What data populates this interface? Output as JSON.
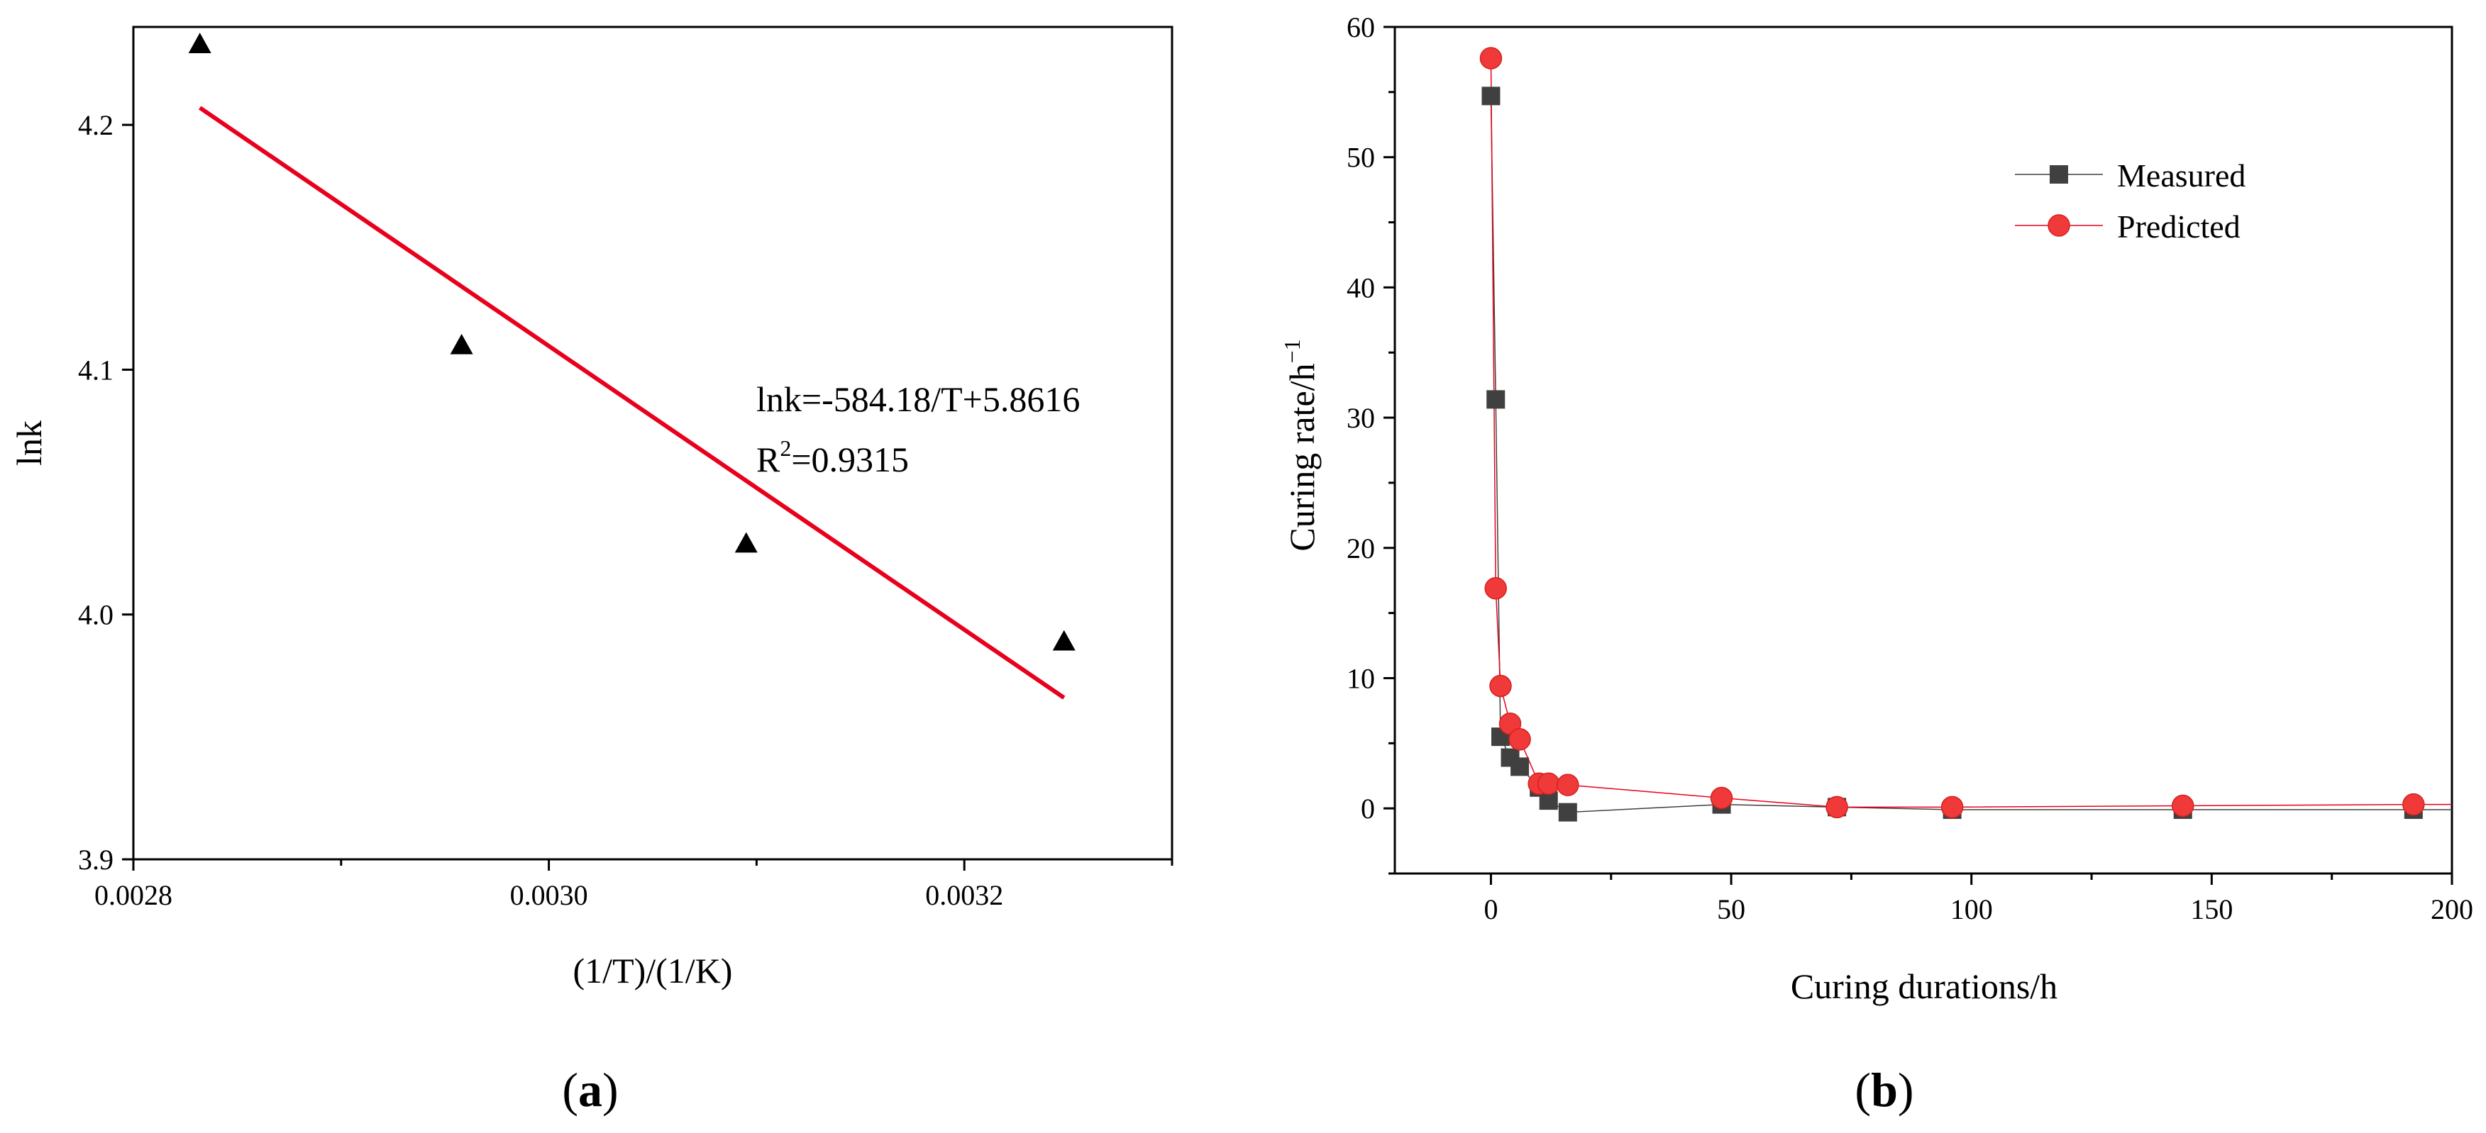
{
  "colors": {
    "red": "#e8001c",
    "marker_red": "#f03a3a",
    "marker_red_edge": "#d42020",
    "gray_marker": "#404040",
    "black": "#000000"
  },
  "chart_data": [
    {
      "type": "scatter",
      "panel_label": "a",
      "xlabel": "(1/T)/(1/K)",
      "ylabel": "lnk",
      "xlim": [
        0.0028,
        0.0033
      ],
      "ylim": [
        3.9,
        4.24
      ],
      "x_ticks": [
        0.0028,
        0.003,
        0.0032
      ],
      "x_tick_labels": [
        "0.0028",
        "0.0030",
        "0.0032"
      ],
      "x_minor_ticks": [
        0.0029,
        0.0031,
        0.0033
      ],
      "y_ticks": [
        3.9,
        4.0,
        4.1,
        4.2
      ],
      "y_tick_labels": [
        "3.9",
        "4.0",
        "4.1",
        "4.2"
      ],
      "series": [
        {
          "name": "data",
          "marker": "triangle",
          "x": [
            0.002832,
            0.002958,
            0.003095,
            0.003248
          ],
          "y": [
            4.233,
            4.11,
            4.029,
            3.989
          ]
        },
        {
          "name": "fit",
          "kind": "line",
          "x": [
            0.002832,
            0.003248
          ],
          "y": [
            4.207,
            3.966
          ]
        }
      ],
      "annotation": {
        "equation": "lnk=-584.18/T+5.8616",
        "r2_prefix": "R",
        "r2_sup": "2",
        "r2_value": "=0.9315"
      }
    },
    {
      "type": "line",
      "panel_label": "b",
      "xlabel": "Curing durations/h",
      "ylabel_main": "Curing rate/h",
      "ylabel_sup": "−1",
      "xlim": [
        -20,
        200
      ],
      "ylim": [
        -5,
        60
      ],
      "x_ticks": [
        0,
        50,
        100,
        150,
        200
      ],
      "x_tick_labels": [
        "0",
        "50",
        "100",
        "150",
        "200"
      ],
      "x_minor_ticks": [
        -25,
        25,
        75,
        125,
        175
      ],
      "y_ticks": [
        0,
        10,
        20,
        30,
        40,
        50,
        60
      ],
      "y_tick_labels": [
        "0",
        "10",
        "20",
        "30",
        "40",
        "50",
        "60"
      ],
      "y_minor_ticks": [
        -5,
        5,
        15,
        25,
        35,
        45,
        55
      ],
      "legend_position": "top-right",
      "series": [
        {
          "name": "Measured",
          "marker": "square",
          "x": [
            0,
            1,
            2,
            4,
            6,
            10,
            12,
            16,
            48,
            72,
            96,
            144,
            192,
            200
          ],
          "y": [
            54.7,
            31.4,
            5.5,
            3.9,
            3.2,
            1.6,
            0.6,
            -0.3,
            0.3,
            0.1,
            -0.1,
            -0.1,
            -0.1,
            -0.1
          ]
        },
        {
          "name": "Predicted",
          "marker": "circle",
          "x": [
            0,
            1,
            2,
            4,
            6,
            10,
            12,
            16,
            48,
            72,
            96,
            144,
            192,
            200
          ],
          "y": [
            57.6,
            16.9,
            9.4,
            6.5,
            5.3,
            1.9,
            1.9,
            1.8,
            0.8,
            0.1,
            0.1,
            0.2,
            0.3,
            0.3
          ]
        }
      ]
    }
  ]
}
